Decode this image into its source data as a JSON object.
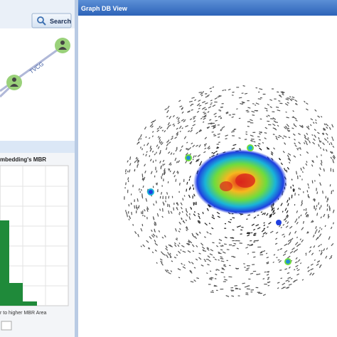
{
  "left_panel": {
    "search_button": "Search",
    "edge_label": "TVCG",
    "histogram_title": "mbedding's MBR",
    "histogram_axis_label": "r to higher MBR Area"
  },
  "right_panel": {
    "title": "Graph DB View"
  }
}
